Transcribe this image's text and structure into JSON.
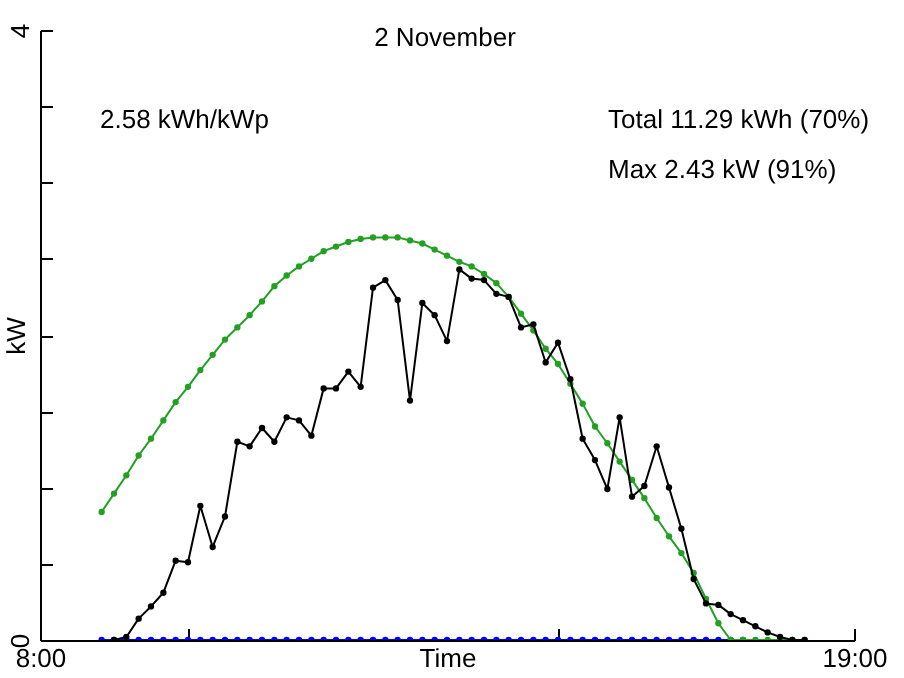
{
  "chart_data": {
    "type": "line",
    "title": "2 November",
    "xlabel": "Time",
    "ylabel": "kW",
    "annotations": [
      "2.58 kWh/kWp",
      "Total 11.29 kWh (70%)",
      "Max 2.43 kW (91%)"
    ],
    "xlim": [
      8,
      19
    ],
    "xticks": [
      {
        "value": 8,
        "label": "8:00"
      },
      {
        "value": 10,
        "label": null
      },
      {
        "value": 15,
        "label": null
      },
      {
        "value": 19,
        "label": "19:00"
      }
    ],
    "ylim": [
      0,
      4
    ],
    "yticks": [
      0,
      {
        "value": 0.5,
        "label": null
      },
      {
        "value": 1,
        "label": null
      },
      {
        "value": 1.5,
        "label": null
      },
      {
        "value": 2,
        "label": null
      },
      {
        "value": 2.5,
        "label": null
      },
      {
        "value": 3,
        "label": null
      },
      {
        "value": 3.5,
        "label": null
      },
      4
    ],
    "grid": false,
    "marker": "circle",
    "line_style": "solid",
    "series": [
      {
        "color": "#0000ff",
        "x": [
          8.833,
          9,
          9.167,
          9.333,
          9.5,
          9.667,
          9.833,
          10,
          10.167,
          10.333,
          10.5,
          10.667,
          10.833,
          11,
          11.167,
          11.333,
          11.5,
          11.667,
          11.833,
          12,
          12.167,
          12.333,
          12.5,
          12.667,
          12.833,
          13,
          13.167,
          13.333,
          13.5,
          13.667,
          13.833,
          14,
          14.167,
          14.333,
          14.5,
          14.667,
          14.833,
          15,
          15.167,
          15.333,
          15.5,
          15.667,
          15.833,
          16,
          16.167,
          16.333,
          16.5,
          16.667,
          16.833,
          17,
          17.167,
          17.333,
          17.5
        ],
        "values": [
          0,
          0,
          0,
          0,
          0,
          0,
          0,
          0,
          0,
          0,
          0,
          0,
          0,
          0,
          0,
          0,
          0,
          0,
          0,
          0,
          0,
          0,
          0,
          0,
          0,
          0,
          0,
          0,
          0,
          0,
          0,
          0,
          0,
          0,
          0,
          0,
          0,
          0,
          0,
          0,
          0,
          0,
          0,
          0,
          0,
          0,
          0,
          0,
          0,
          0,
          0,
          0,
          0
        ]
      },
      {
        "color": "#22a022",
        "x": [
          8.833,
          9,
          9.167,
          9.333,
          9.5,
          9.667,
          9.833,
          10,
          10.167,
          10.333,
          10.5,
          10.667,
          10.833,
          11,
          11.167,
          11.333,
          11.5,
          11.667,
          11.833,
          12,
          12.167,
          12.333,
          12.5,
          12.667,
          12.833,
          13,
          13.167,
          13.333,
          13.5,
          13.667,
          13.833,
          14,
          14.167,
          14.333,
          14.5,
          14.667,
          14.833,
          15,
          15.167,
          15.333,
          15.5,
          15.667,
          15.833,
          16,
          16.167,
          16.333,
          16.5,
          16.667,
          16.833,
          17,
          17.167,
          17.333,
          17.5,
          17.667,
          17.833,
          18,
          18.167,
          18.333
        ],
        "values": [
          0.84,
          0.96,
          1.08,
          1.21,
          1.32,
          1.44,
          1.56,
          1.66,
          1.77,
          1.87,
          1.97,
          2.05,
          2.13,
          2.22,
          2.32,
          2.39,
          2.45,
          2.5,
          2.55,
          2.58,
          2.61,
          2.63,
          2.64,
          2.64,
          2.64,
          2.62,
          2.6,
          2.56,
          2.52,
          2.48,
          2.45,
          2.4,
          2.34,
          2.25,
          2.14,
          2.03,
          1.91,
          1.81,
          1.68,
          1.55,
          1.4,
          1.29,
          1.17,
          1.05,
          0.93,
          0.8,
          0.68,
          0.57,
          0.44,
          0.27,
          0.11,
          0,
          0,
          0,
          0,
          0,
          0,
          0
        ]
      },
      {
        "color": "#000000",
        "x": [
          9,
          9.167,
          9.333,
          9.5,
          9.667,
          9.833,
          10,
          10.167,
          10.333,
          10.5,
          10.667,
          10.833,
          11,
          11.167,
          11.333,
          11.5,
          11.667,
          11.833,
          12,
          12.167,
          12.333,
          12.5,
          12.667,
          12.833,
          13,
          13.167,
          13.333,
          13.5,
          13.667,
          13.833,
          14,
          14.167,
          14.333,
          14.5,
          14.667,
          14.833,
          15,
          15.167,
          15.333,
          15.5,
          15.667,
          15.833,
          16,
          16.167,
          16.333,
          16.5,
          16.667,
          16.833,
          17,
          17.167,
          17.333,
          17.5,
          17.667,
          17.833,
          18,
          18.167,
          18.333
        ],
        "values": [
          0,
          0.02,
          0.14,
          0.22,
          0.31,
          0.52,
          0.51,
          0.88,
          0.61,
          0.81,
          1.3,
          1.27,
          1.39,
          1.3,
          1.46,
          1.44,
          1.34,
          1.65,
          1.65,
          1.76,
          1.66,
          2.31,
          2.36,
          2.23,
          1.57,
          2.21,
          2.13,
          1.96,
          2.43,
          2.37,
          2.36,
          2.27,
          2.25,
          2.05,
          2.07,
          1.82,
          1.95,
          1.71,
          1.32,
          1.18,
          0.99,
          1.46,
          0.94,
          1.01,
          1.27,
          1,
          0.73,
          0.4,
          0.24,
          0.23,
          0.17,
          0.13,
          0.09,
          0.05,
          0.02,
          0,
          0
        ]
      }
    ]
  }
}
